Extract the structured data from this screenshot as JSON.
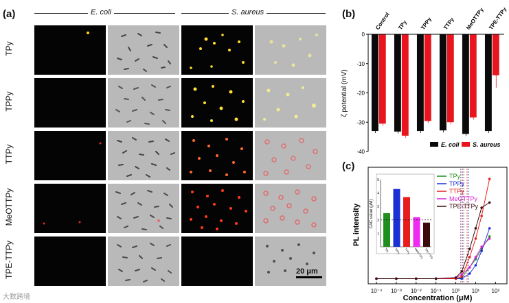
{
  "panel_a": {
    "label": "(a)",
    "species": [
      "E. coli",
      "S. aureus"
    ],
    "rows": [
      "TPy",
      "TPPy",
      "TTPy",
      "MeOTTPy",
      "TPE-TTPy"
    ],
    "scale_bar": "20 μm"
  },
  "panel_b": {
    "label": "(b)",
    "chart_data": {
      "type": "bar",
      "categories": [
        "Control",
        "TPy",
        "TPPy",
        "TTPy",
        "MeOTTPy",
        "TPE-TTPy"
      ],
      "ylabel": "ζ potential (mV)",
      "ylim": [
        -40,
        0
      ],
      "yticks": [
        "0",
        "-10",
        "-20",
        "-30",
        "-40"
      ],
      "series": [
        {
          "name": "E. coli",
          "color": "#0a0a0a",
          "values": [
            -33,
            -33.2,
            -33,
            -32.8,
            -34,
            -33
          ]
        },
        {
          "name": "S. aureus",
          "color": "#e8141e",
          "values": [
            -30.5,
            -34.6,
            -29.6,
            -30,
            -28.4,
            -14
          ]
        }
      ]
    }
  },
  "panel_c": {
    "label": "(c)",
    "chart_data": {
      "type": "scatter",
      "xlabel": "Concentration (μM)",
      "ylabel": "PL intensity",
      "xticks": [
        "10⁻⁴",
        "10⁻³",
        "10⁻²",
        "10⁻¹",
        "10⁰",
        "10¹",
        "10²"
      ],
      "legend": [
        {
          "name": "TPy",
          "color": "#1f8f1f"
        },
        {
          "name": "TPPy",
          "color": "#1a2fd6"
        },
        {
          "name": "TTPy",
          "color": "#e81c1c"
        },
        {
          "name": "MeOTTPy",
          "color": "#d821d8"
        },
        {
          "name": "TPE-TTPy",
          "color": "#3b0a0a"
        }
      ],
      "series": [
        {
          "name": "TPy",
          "cac": 2.5,
          "points": [
            [
              0.0001,
              0.01
            ],
            [
              0.001,
              0.01
            ],
            [
              0.01,
              0.01
            ],
            [
              0.1,
              0.01
            ],
            [
              1,
              0.01
            ],
            [
              2,
              0.02
            ],
            [
              5,
              0.12
            ],
            [
              10,
              0.2
            ],
            [
              20,
              0.3
            ],
            [
              50,
              0.42
            ]
          ]
        },
        {
          "name": "TPPy",
          "cac": 4.3,
          "points": [
            [
              0.0001,
              0.01
            ],
            [
              0.001,
              0.01
            ],
            [
              0.01,
              0.01
            ],
            [
              0.1,
              0.01
            ],
            [
              1,
              0.01
            ],
            [
              2,
              0.01
            ],
            [
              5,
              0.06
            ],
            [
              10,
              0.14
            ],
            [
              20,
              0.28
            ],
            [
              50,
              0.5
            ]
          ]
        },
        {
          "name": "TTPy",
          "cac": 3.7,
          "points": [
            [
              0.0001,
              0.01
            ],
            [
              0.001,
              0.01
            ],
            [
              0.01,
              0.01
            ],
            [
              0.1,
              0.01
            ],
            [
              1,
              0.01
            ],
            [
              2,
              0.03
            ],
            [
              5,
              0.22
            ],
            [
              10,
              0.4
            ],
            [
              20,
              0.62
            ],
            [
              50,
              0.98
            ]
          ]
        },
        {
          "name": "MeOTTPy",
          "cac": 2.2,
          "points": [
            [
              0.0001,
              0.01
            ],
            [
              0.001,
              0.01
            ],
            [
              0.01,
              0.01
            ],
            [
              0.1,
              0.01
            ],
            [
              1,
              0.02
            ],
            [
              2,
              0.05
            ],
            [
              5,
              0.12
            ],
            [
              10,
              0.22
            ],
            [
              20,
              0.32
            ],
            [
              50,
              0.4
            ]
          ]
        },
        {
          "name": "TPE-TTPy",
          "cac": 1.8,
          "points": [
            [
              0.0001,
              0.01
            ],
            [
              0.001,
              0.01
            ],
            [
              0.01,
              0.01
            ],
            [
              0.1,
              0.01
            ],
            [
              1,
              0.02
            ],
            [
              2,
              0.08
            ],
            [
              5,
              0.3
            ],
            [
              10,
              0.5
            ],
            [
              20,
              0.7
            ],
            [
              50,
              0.75
            ]
          ]
        }
      ],
      "inset": {
        "type": "bar",
        "ylabel": "CAC value (μM)",
        "yticks": [
          "1",
          "2",
          "3",
          "4",
          "5"
        ],
        "categories": [
          "TPy",
          "TPPy",
          "TTPy",
          "MeOTTPy",
          "TPE-TTPy"
        ],
        "values": [
          2.5,
          4.3,
          3.7,
          2.2,
          1.8
        ],
        "colors": [
          "#1f8f1f",
          "#1a2fd6",
          "#e81c1c",
          "#f02af0",
          "#3b0a0a"
        ]
      }
    }
  },
  "watermark": "大数跨境"
}
